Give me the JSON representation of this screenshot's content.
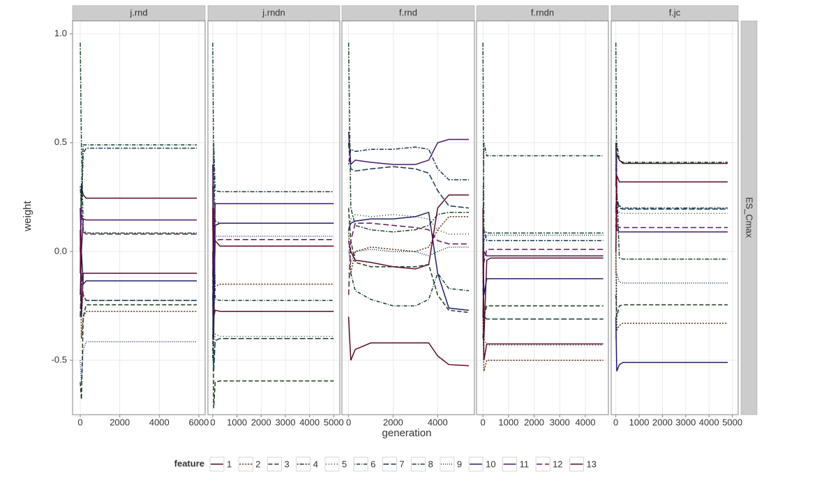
{
  "chart_data": {
    "type": "line",
    "y_label": "weight",
    "x_label": "generation",
    "row_label": "ES_Cmax",
    "legend_title": "feature",
    "grid": true,
    "ylim": [
      -0.75,
      1.06
    ],
    "yticks": [
      -0.5,
      {
        "value": 0,
        "label": "0.0"
      },
      0.5,
      {
        "value": 1,
        "label": "1.0"
      }
    ],
    "series": [
      {
        "name": "1",
        "color": "#5c0a1e",
        "dash": "none"
      },
      {
        "name": "2",
        "color": "#5c2a0a",
        "dash": "2,2"
      },
      {
        "name": "3",
        "color": "#1e3a1e",
        "dash": "6,3"
      },
      {
        "name": "4",
        "color": "#1a3a50",
        "dash": "2,2,6,2"
      },
      {
        "name": "5",
        "color": "#2a3a20",
        "dash": "1,3"
      },
      {
        "name": "6",
        "color": "#0f3a2a",
        "dash": "1,2,5,2"
      },
      {
        "name": "7",
        "color": "#103a4a",
        "dash": "8,3"
      },
      {
        "name": "8",
        "color": "#1a4a2a",
        "dash": "6,2,2,2"
      },
      {
        "name": "9",
        "color": "#1a2a5a",
        "dash": "1,2"
      },
      {
        "name": "10",
        "color": "#22206a",
        "dash": "none"
      },
      {
        "name": "11",
        "color": "#4a1a6a",
        "dash": "none"
      },
      {
        "name": "12",
        "color": "#5a1a5a",
        "dash": "8,4"
      },
      {
        "name": "13",
        "color": "#5c0a2a",
        "dash": "none"
      }
    ],
    "panels": [
      {
        "title": "j.rnd",
        "xlim": [
          -390,
          6320
        ],
        "xticks": [
          0,
          2000,
          4000,
          6000
        ],
        "x": [
          0,
          60,
          150,
          300,
          1000,
          3000,
          5900
        ],
        "values": [
          [
            -0.1,
            0.3,
            0.26,
            0.245,
            0.245,
            0.245,
            0.245
          ],
          [
            0.1,
            -0.4,
            -0.3,
            -0.275,
            -0.275,
            -0.275,
            -0.275
          ],
          [
            -0.6,
            -0.68,
            -0.3,
            -0.245,
            -0.245,
            -0.245,
            -0.245
          ],
          [
            0.3,
            0.2,
            0.45,
            0.475,
            0.475,
            0.475,
            0.475
          ],
          [
            0.2,
            -0.3,
            -0.2,
            -0.225,
            -0.225,
            -0.225,
            -0.225
          ],
          [
            0.0,
            0.3,
            0.49,
            0.49,
            0.49,
            0.49,
            0.49
          ],
          [
            -0.3,
            -0.1,
            -0.2,
            -0.225,
            -0.225,
            -0.225,
            -0.225
          ],
          [
            0.96,
            0.5,
            0.1,
            0.085,
            0.085,
            0.085,
            0.085
          ],
          [
            -0.5,
            -0.6,
            -0.45,
            -0.415,
            -0.415,
            -0.415,
            -0.415
          ],
          [
            -0.2,
            0.0,
            -0.15,
            -0.135,
            -0.135,
            -0.135,
            -0.135
          ],
          [
            0.2,
            0.0,
            0.15,
            0.145,
            0.145,
            0.145,
            0.145
          ],
          [
            0.0,
            0.2,
            0.09,
            0.08,
            0.08,
            0.08,
            0.08
          ],
          [
            0.1,
            -0.3,
            -0.1,
            -0.1,
            -0.1,
            -0.1,
            -0.1
          ]
        ]
      },
      {
        "title": "j.rndn",
        "xlim": [
          -200,
          5250
        ],
        "xticks": [
          0,
          1000,
          2000,
          3000,
          4000,
          5000
        ],
        "x": [
          0,
          40,
          100,
          300,
          1000,
          3000,
          5000
        ],
        "values": [
          [
            0.3,
            -0.2,
            0.05,
            0.025,
            0.025,
            0.025,
            0.025
          ],
          [
            -0.4,
            0.1,
            -0.16,
            -0.15,
            -0.15,
            -0.15,
            -0.15
          ],
          [
            -0.1,
            -0.72,
            -0.6,
            -0.595,
            -0.595,
            -0.595,
            -0.595
          ],
          [
            0.1,
            0.5,
            0.28,
            0.275,
            0.275,
            0.275,
            0.275
          ],
          [
            0.2,
            -0.5,
            -0.38,
            -0.39,
            -0.39,
            -0.39,
            -0.39
          ],
          [
            -0.5,
            0.2,
            -0.22,
            -0.225,
            -0.225,
            -0.225,
            -0.225
          ],
          [
            -0.2,
            -0.55,
            -0.41,
            -0.4,
            -0.4,
            -0.4,
            -0.4
          ],
          [
            0.96,
            0.4,
            0.14,
            0.13,
            0.13,
            0.13,
            0.13
          ],
          [
            -0.3,
            0.3,
            0.07,
            0.07,
            0.07,
            0.07,
            0.07
          ],
          [
            0.0,
            -0.4,
            0.12,
            0.13,
            0.13,
            0.13,
            0.13
          ],
          [
            0.4,
            -0.1,
            0.22,
            0.22,
            0.22,
            0.22,
            0.22
          ],
          [
            -0.1,
            0.2,
            0.05,
            0.055,
            0.055,
            0.055,
            0.055
          ],
          [
            0.2,
            -0.3,
            -0.27,
            -0.275,
            -0.275,
            -0.275,
            -0.275
          ]
        ]
      },
      {
        "title": "f.rnd",
        "xlim": [
          -300,
          5650
        ],
        "xticks": [
          0,
          2000,
          4000
        ],
        "x": [
          0,
          100,
          300,
          1000,
          2000,
          3000,
          3600,
          4000,
          4500,
          5400
        ],
        "values": [
          [
            -0.3,
            -0.5,
            -0.45,
            -0.42,
            -0.42,
            -0.42,
            -0.42,
            -0.48,
            -0.52,
            -0.525
          ],
          [
            0.1,
            -0.1,
            0.0,
            0.02,
            0.01,
            0.0,
            0.02,
            0.1,
            0.16,
            0.16
          ],
          [
            0.2,
            0.05,
            -0.05,
            -0.07,
            -0.07,
            -0.07,
            -0.06,
            -0.2,
            -0.27,
            -0.28
          ],
          [
            0.4,
            0.47,
            0.46,
            0.47,
            0.47,
            0.48,
            0.47,
            0.38,
            0.33,
            0.33
          ],
          [
            0.1,
            0.15,
            0.17,
            0.16,
            0.17,
            0.16,
            0.15,
            0.1,
            0.08,
            0.08
          ],
          [
            -0.1,
            -0.1,
            -0.18,
            -0.22,
            -0.25,
            -0.25,
            -0.22,
            -0.1,
            -0.17,
            -0.18
          ],
          [
            0.5,
            0.38,
            0.37,
            0.38,
            0.39,
            0.38,
            0.36,
            0.28,
            0.21,
            0.2
          ],
          [
            0.96,
            0.2,
            0.12,
            0.1,
            0.09,
            0.1,
            0.12,
            0.17,
            0.18,
            0.18
          ],
          [
            0.0,
            -0.05,
            0.0,
            0.01,
            0.0,
            0.0,
            -0.02,
            0.0,
            0.02,
            0.02
          ],
          [
            0.1,
            0.13,
            0.14,
            0.15,
            0.15,
            0.16,
            0.18,
            -0.1,
            -0.26,
            -0.27
          ],
          [
            0.55,
            0.4,
            0.42,
            0.41,
            0.4,
            0.4,
            0.42,
            0.5,
            0.515,
            0.515
          ],
          [
            -0.2,
            0.05,
            0.13,
            0.13,
            0.12,
            0.11,
            0.1,
            0.05,
            0.035,
            0.035
          ],
          [
            0.05,
            0.0,
            -0.04,
            -0.05,
            -0.07,
            -0.08,
            -0.06,
            0.2,
            0.26,
            0.26
          ]
        ]
      },
      {
        "title": "f.rndn",
        "xlim": [
          -250,
          4900
        ],
        "xticks": [
          0,
          1000,
          2000,
          3000,
          4000
        ],
        "x": [
          0,
          40,
          150,
          300,
          1000,
          3000,
          4700
        ],
        "values": [
          [
            0.2,
            -0.4,
            -0.04,
            -0.03,
            -0.03,
            -0.03,
            -0.03
          ],
          [
            -0.3,
            -0.55,
            -0.5,
            -0.5,
            -0.5,
            -0.5,
            -0.5
          ],
          [
            0.1,
            -0.3,
            -0.25,
            -0.25,
            -0.25,
            -0.25,
            -0.25
          ],
          [
            -0.2,
            0.1,
            0.05,
            0.05,
            0.05,
            0.05,
            0.05
          ],
          [
            0.3,
            -0.4,
            -0.43,
            -0.43,
            -0.43,
            -0.43,
            -0.43
          ],
          [
            0.0,
            0.5,
            0.44,
            0.44,
            0.44,
            0.44,
            0.44
          ],
          [
            -0.4,
            -0.3,
            -0.31,
            -0.31,
            -0.31,
            -0.31,
            -0.31
          ],
          [
            0.96,
            0.1,
            0.085,
            0.085,
            0.085,
            0.085,
            0.085
          ],
          [
            -0.1,
            0.05,
            0.075,
            0.075,
            0.075,
            0.075,
            0.075
          ],
          [
            0.1,
            -0.2,
            -0.125,
            -0.125,
            -0.125,
            -0.125,
            -0.125
          ],
          [
            -0.3,
            0.0,
            -0.02,
            -0.02,
            -0.02,
            -0.02,
            -0.02
          ],
          [
            0.15,
            -0.05,
            0.01,
            0.01,
            0.01,
            0.01,
            0.01
          ],
          [
            0.0,
            -0.5,
            -0.425,
            -0.425,
            -0.425,
            -0.425,
            -0.425
          ]
        ]
      },
      {
        "title": "f.jc",
        "xlim": [
          -200,
          5250
        ],
        "xticks": [
          0,
          1000,
          2000,
          3000,
          4000,
          5000
        ],
        "x": [
          0,
          40,
          150,
          300,
          1000,
          3000,
          4800
        ],
        "values": [
          [
            0.3,
            0.45,
            0.42,
            0.405,
            0.405,
            0.405,
            0.405
          ],
          [
            0.0,
            -0.36,
            -0.34,
            -0.33,
            -0.33,
            -0.33,
            -0.33
          ],
          [
            -0.2,
            -0.3,
            -0.25,
            -0.245,
            -0.245,
            -0.245,
            -0.245
          ],
          [
            0.4,
            0.2,
            0.21,
            0.2,
            0.2,
            0.2,
            0.2
          ],
          [
            -0.1,
            0.2,
            0.18,
            0.175,
            0.175,
            0.175,
            0.175
          ],
          [
            0.1,
            0.5,
            0.42,
            0.41,
            0.41,
            0.41,
            0.41
          ],
          [
            0.2,
            0.25,
            0.2,
            0.195,
            0.195,
            0.195,
            0.195
          ],
          [
            0.96,
            0.3,
            -0.03,
            -0.035,
            -0.035,
            -0.035,
            -0.035
          ],
          [
            -0.4,
            -0.1,
            -0.14,
            -0.145,
            -0.145,
            -0.145,
            -0.145
          ],
          [
            -0.3,
            -0.55,
            -0.52,
            -0.51,
            -0.51,
            -0.51,
            -0.51
          ],
          [
            0.5,
            0.1,
            0.09,
            0.09,
            0.09,
            0.09,
            0.09
          ],
          [
            0.2,
            0.12,
            0.11,
            0.11,
            0.11,
            0.11,
            0.11
          ],
          [
            0.0,
            0.35,
            0.32,
            0.32,
            0.32,
            0.32,
            0.32
          ]
        ]
      }
    ]
  }
}
